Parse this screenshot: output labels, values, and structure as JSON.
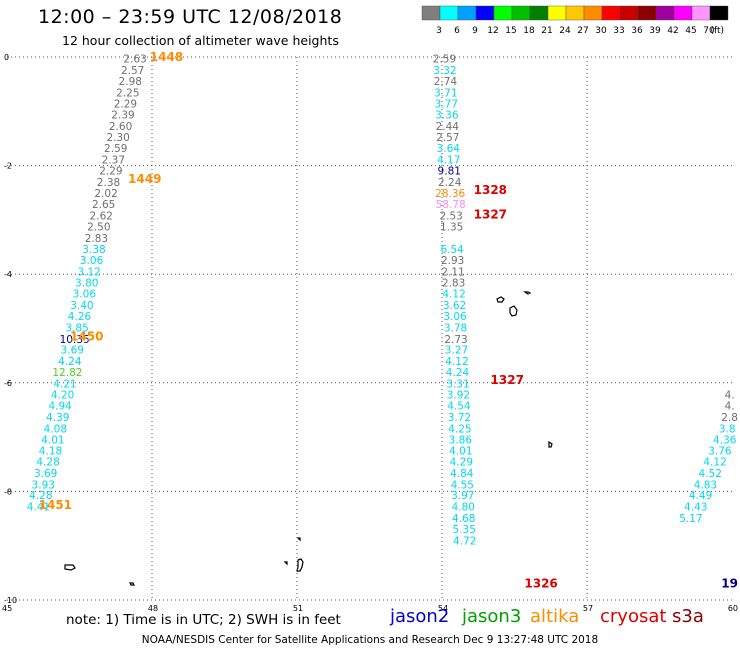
{
  "header": {
    "title": "12:00 – 23:59 UTC 12/08/2018",
    "subtitle": "12 hour collection of altimeter wave heights"
  },
  "legend": {
    "unit": "(ft)",
    "bins": [
      {
        "label": "3",
        "color": "#7f7f7f"
      },
      {
        "label": "6",
        "color": "#00ffff"
      },
      {
        "label": "9",
        "color": "#00a0ff"
      },
      {
        "label": "12",
        "color": "#0000ff"
      },
      {
        "label": "15",
        "color": "#00ff00"
      },
      {
        "label": "18",
        "color": "#00c000"
      },
      {
        "label": "21",
        "color": "#008000"
      },
      {
        "label": "24",
        "color": "#ffff00"
      },
      {
        "label": "27",
        "color": "#ffc800"
      },
      {
        "label": "30",
        "color": "#ff8c00"
      },
      {
        "label": "33",
        "color": "#ff0000"
      },
      {
        "label": "36",
        "color": "#c80000"
      },
      {
        "label": "39",
        "color": "#8c0000"
      },
      {
        "label": "42",
        "color": "#a000a0"
      },
      {
        "label": "45",
        "color": "#ff00ff"
      },
      {
        "label": "70",
        "color": "#ff96ff"
      },
      {
        "label": "",
        "color": "#000000"
      }
    ]
  },
  "footer": {
    "note": "note:  1) Time is in UTC;  2) SWH is in feet",
    "satellites": [
      {
        "name": "jason2",
        "color": "#0000cc"
      },
      {
        "name": "jason3",
        "color": "#00a000"
      },
      {
        "name": "altika",
        "color": "#ff8c00"
      },
      {
        "name": "cryosat",
        "color": "#dd0000"
      },
      {
        "name": "s3a",
        "color": "#880000"
      }
    ],
    "credit": "NOAA/NESDIS Center for Satellite Applications and Research    Dec  9 13:27:48 UTC 2018"
  },
  "chart_data": {
    "type": "scatter",
    "title": "12:00 – 23:59 UTC 12/08/2018",
    "xlabel": "",
    "ylabel": "",
    "xlim": [
      45,
      60
    ],
    "ylim": [
      -10,
      0
    ],
    "x_ticks": [
      45,
      48,
      51,
      54,
      57,
      60
    ],
    "y_ticks": [
      0,
      -2,
      -4,
      -6,
      -8,
      -10
    ],
    "grid": true,
    "colors": {
      "grey": "#6e6e6e",
      "cyan": "#00d8f0",
      "navy": "#00008c",
      "green": "#4ccf20",
      "orange": "#ff8c00",
      "red": "#dd0000",
      "pink": "#ff88ff",
      "coast": "#000000"
    },
    "swh_series": [
      {
        "name": "",
        "color": "grey",
        "points": [
          {
            "x": 47.65,
            "y": -0.03,
            "value": "2.63"
          },
          {
            "x": 47.6,
            "y": -0.24,
            "value": "2.57"
          },
          {
            "x": 47.55,
            "y": -0.44,
            "value": "2.98"
          },
          {
            "x": 47.5,
            "y": -0.65,
            "value": "2.25"
          },
          {
            "x": 47.45,
            "y": -0.86,
            "value": "2.29"
          },
          {
            "x": 47.4,
            "y": -1.06,
            "value": "2.39"
          },
          {
            "x": 47.35,
            "y": -1.27,
            "value": "2.60"
          },
          {
            "x": 47.3,
            "y": -1.47,
            "value": "2.30"
          },
          {
            "x": 47.25,
            "y": -1.68,
            "value": "2.59"
          },
          {
            "x": 47.2,
            "y": -1.89,
            "value": "2.37"
          },
          {
            "x": 47.15,
            "y": -2.09,
            "value": "2.29"
          },
          {
            "x": 47.1,
            "y": -2.3,
            "value": "2.38"
          },
          {
            "x": 47.05,
            "y": -2.5,
            "value": "2.02"
          },
          {
            "x": 47.0,
            "y": -2.71,
            "value": "2.65"
          },
          {
            "x": 46.95,
            "y": -2.92,
            "value": "2.62"
          },
          {
            "x": 46.9,
            "y": -3.12,
            "value": "2.50"
          },
          {
            "x": 46.85,
            "y": -3.33,
            "value": "2.83"
          }
        ]
      },
      {
        "name": "",
        "color": "cyan",
        "points": [
          {
            "x": 46.8,
            "y": -3.54,
            "value": "3.38"
          },
          {
            "x": 46.75,
            "y": -3.74,
            "value": "3.06"
          },
          {
            "x": 46.7,
            "y": -3.95,
            "value": "3.12"
          },
          {
            "x": 46.65,
            "y": -4.15,
            "value": "3.80"
          },
          {
            "x": 46.6,
            "y": -4.36,
            "value": "3.06"
          },
          {
            "x": 46.55,
            "y": -4.57,
            "value": "3.40"
          },
          {
            "x": 46.5,
            "y": -4.77,
            "value": "4.26"
          },
          {
            "x": 46.45,
            "y": -4.98,
            "value": "3.85"
          }
        ]
      },
      {
        "name": "",
        "color": "navy",
        "points": [
          {
            "x": 46.4,
            "y": -5.19,
            "value": "10.35"
          }
        ]
      },
      {
        "name": "",
        "color": "cyan",
        "points": [
          {
            "x": 46.35,
            "y": -5.39,
            "value": "3.69"
          },
          {
            "x": 46.3,
            "y": -5.6,
            "value": "4.24"
          }
        ]
      },
      {
        "name": "",
        "color": "green",
        "points": [
          {
            "x": 46.25,
            "y": -5.8,
            "value": "12.82"
          }
        ]
      },
      {
        "name": "",
        "color": "cyan",
        "points": [
          {
            "x": 46.2,
            "y": -6.01,
            "value": "4.21"
          },
          {
            "x": 46.15,
            "y": -6.22,
            "value": "4.20"
          },
          {
            "x": 46.1,
            "y": -6.42,
            "value": "4.94"
          },
          {
            "x": 46.05,
            "y": -6.63,
            "value": "4.39"
          },
          {
            "x": 46.0,
            "y": -6.84,
            "value": "4.08"
          },
          {
            "x": 45.95,
            "y": -7.04,
            "value": "4.01"
          },
          {
            "x": 45.9,
            "y": -7.25,
            "value": "4.18"
          },
          {
            "x": 45.85,
            "y": -7.45,
            "value": "4.28"
          },
          {
            "x": 45.8,
            "y": -7.66,
            "value": "3.69"
          },
          {
            "x": 45.75,
            "y": -7.87,
            "value": "3.93"
          },
          {
            "x": 45.7,
            "y": -8.07,
            "value": "4.28"
          },
          {
            "x": 45.65,
            "y": -8.28,
            "value": "4.41"
          }
        ]
      },
      {
        "name": "",
        "color": "grey",
        "points": [
          {
            "x": 54.05,
            "y": -0.03,
            "value": "2.59"
          }
        ]
      },
      {
        "name": "",
        "color": "cyan",
        "points": [
          {
            "x": 54.06,
            "y": -0.24,
            "value": "3.32"
          }
        ]
      },
      {
        "name": "",
        "color": "grey",
        "points": [
          {
            "x": 54.07,
            "y": -0.44,
            "value": "2.74"
          }
        ]
      },
      {
        "name": "",
        "color": "cyan",
        "points": [
          {
            "x": 54.08,
            "y": -0.65,
            "value": "3.71"
          },
          {
            "x": 54.09,
            "y": -0.86,
            "value": "3.77"
          },
          {
            "x": 54.1,
            "y": -1.06,
            "value": "3.36"
          }
        ]
      },
      {
        "name": "",
        "color": "grey",
        "points": [
          {
            "x": 54.11,
            "y": -1.27,
            "value": "2.44"
          },
          {
            "x": 54.12,
            "y": -1.47,
            "value": "2.57"
          }
        ]
      },
      {
        "name": "",
        "color": "cyan",
        "points": [
          {
            "x": 54.13,
            "y": -1.68,
            "value": "3.64"
          },
          {
            "x": 54.14,
            "y": -1.89,
            "value": "4.17"
          }
        ]
      },
      {
        "name": "",
        "color": "navy",
        "points": [
          {
            "x": 54.15,
            "y": -2.09,
            "value": "9.81"
          }
        ]
      },
      {
        "name": "",
        "color": "grey",
        "points": [
          {
            "x": 54.16,
            "y": -2.3,
            "value": "2.24"
          }
        ]
      },
      {
        "name": "",
        "color": "orange",
        "points": [
          {
            "x": 54.17,
            "y": -2.5,
            "value": "28.36"
          }
        ]
      },
      {
        "name": "",
        "color": "pink",
        "points": [
          {
            "x": 54.18,
            "y": -2.71,
            "value": "58.78"
          }
        ]
      },
      {
        "name": "",
        "color": "grey",
        "points": [
          {
            "x": 54.19,
            "y": -2.92,
            "value": "2.53"
          },
          {
            "x": 54.2,
            "y": -3.12,
            "value": "1.35"
          }
        ]
      },
      {
        "name": "",
        "color": "cyan",
        "points": [
          {
            "x": 54.21,
            "y": -3.54,
            "value": "6.54"
          }
        ]
      },
      {
        "name": "",
        "color": "grey",
        "points": [
          {
            "x": 54.22,
            "y": -3.74,
            "value": "2.93"
          },
          {
            "x": 54.23,
            "y": -3.95,
            "value": "2.11"
          },
          {
            "x": 54.24,
            "y": -4.15,
            "value": "2.83"
          }
        ]
      },
      {
        "name": "",
        "color": "cyan",
        "points": [
          {
            "x": 54.25,
            "y": -4.36,
            "value": "4.12"
          },
          {
            "x": 54.26,
            "y": -4.57,
            "value": "3.62"
          },
          {
            "x": 54.27,
            "y": -4.77,
            "value": "3.06"
          },
          {
            "x": 54.28,
            "y": -4.98,
            "value": "3.78"
          }
        ]
      },
      {
        "name": "",
        "color": "grey",
        "points": [
          {
            "x": 54.29,
            "y": -5.19,
            "value": "2.73"
          }
        ]
      },
      {
        "name": "",
        "color": "cyan",
        "points": [
          {
            "x": 54.3,
            "y": -5.39,
            "value": "3.27"
          },
          {
            "x": 54.31,
            "y": -5.6,
            "value": "4.12"
          },
          {
            "x": 54.32,
            "y": -5.8,
            "value": "4.24"
          },
          {
            "x": 54.33,
            "y": -6.01,
            "value": "3.31"
          },
          {
            "x": 54.34,
            "y": -6.22,
            "value": "3.92"
          },
          {
            "x": 54.35,
            "y": -6.42,
            "value": "4.54"
          },
          {
            "x": 54.36,
            "y": -6.63,
            "value": "3.72"
          },
          {
            "x": 54.37,
            "y": -6.84,
            "value": "4.25"
          },
          {
            "x": 54.38,
            "y": -7.04,
            "value": "3.86"
          },
          {
            "x": 54.39,
            "y": -7.25,
            "value": "4.01"
          },
          {
            "x": 54.4,
            "y": -7.45,
            "value": "4.29"
          },
          {
            "x": 54.41,
            "y": -7.66,
            "value": "4.84"
          },
          {
            "x": 54.42,
            "y": -7.87,
            "value": "4.55"
          },
          {
            "x": 54.43,
            "y": -8.07,
            "value": "3.97"
          },
          {
            "x": 54.44,
            "y": -8.28,
            "value": "4.80"
          },
          {
            "x": 54.45,
            "y": -8.49,
            "value": "4.68"
          },
          {
            "x": 54.46,
            "y": -8.69,
            "value": "5.35"
          },
          {
            "x": 54.47,
            "y": -8.9,
            "value": "4.72"
          }
        ]
      },
      {
        "name": "",
        "color": "grey",
        "points": [
          {
            "x": 59.95,
            "y": -6.22,
            "value": "4."
          },
          {
            "x": 59.95,
            "y": -6.42,
            "value": "4."
          },
          {
            "x": 59.95,
            "y": -6.63,
            "value": "2.8"
          }
        ]
      },
      {
        "name": "",
        "color": "cyan",
        "points": [
          {
            "x": 59.9,
            "y": -6.84,
            "value": "3.8"
          },
          {
            "x": 59.85,
            "y": -7.04,
            "value": "4.36"
          },
          {
            "x": 59.75,
            "y": -7.25,
            "value": "3.76"
          },
          {
            "x": 59.65,
            "y": -7.45,
            "value": "4.12"
          },
          {
            "x": 59.55,
            "y": -7.66,
            "value": "4.52"
          },
          {
            "x": 59.45,
            "y": -7.87,
            "value": "4.83"
          },
          {
            "x": 59.35,
            "y": -8.07,
            "value": "4.49"
          },
          {
            "x": 59.25,
            "y": -8.28,
            "value": "4.43"
          },
          {
            "x": 59.15,
            "y": -8.49,
            "value": "5.17"
          }
        ]
      }
    ],
    "time_labels": [
      {
        "x": 48.3,
        "y": 0.0,
        "value": "1448",
        "color": "orange"
      },
      {
        "x": 47.85,
        "y": -2.25,
        "value": "1449",
        "color": "orange"
      },
      {
        "x": 46.65,
        "y": -5.15,
        "value": "1450",
        "color": "orange"
      },
      {
        "x": 46.0,
        "y": -8.25,
        "value": "1451",
        "color": "orange"
      },
      {
        "x": 55.0,
        "y": -2.45,
        "value": "1328",
        "color": "red"
      },
      {
        "x": 55.0,
        "y": -2.9,
        "value": "1327",
        "color": "red"
      },
      {
        "x": 55.35,
        "y": -5.95,
        "value": "1327",
        "color": "red"
      },
      {
        "x": 56.05,
        "y": -9.7,
        "value": "1326",
        "color": "red"
      },
      {
        "x": 59.95,
        "y": -9.7,
        "value": "19",
        "color": "navy"
      }
    ]
  }
}
